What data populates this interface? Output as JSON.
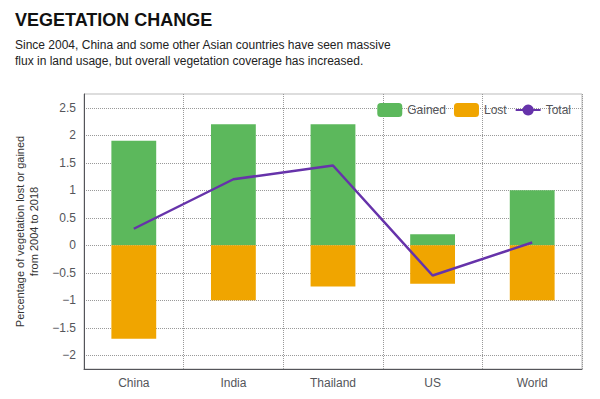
{
  "chart_data": {
    "type": "bar",
    "title": "VEGETATION CHANGE",
    "subtitle": "Since 2004, China and some other Asian countries have seen massive\nflux in land usage, but overall vegetation coverage has increased.",
    "ylabel": "Percentage of vegetation lost or gained\nfrom 2004 to 2018",
    "categories": [
      "China",
      "India",
      "Thailand",
      "US",
      "World"
    ],
    "series": [
      {
        "name": "Gained",
        "type": "bar",
        "color": "#5cb85c",
        "values": [
          1.9,
          2.2,
          2.2,
          0.2,
          1.0
        ]
      },
      {
        "name": "Lost",
        "type": "bar",
        "color": "#f0a500",
        "values": [
          -1.7,
          -1.0,
          -0.75,
          -0.7,
          -1.0
        ]
      },
      {
        "name": "Total",
        "type": "line",
        "marker": "none",
        "color": "#6633aa",
        "values": [
          0.3,
          1.2,
          1.45,
          -0.55,
          0.05
        ]
      }
    ],
    "ylim": [
      -2.25,
      2.75
    ],
    "yticks": [
      {
        "value": -2,
        "label": "−2"
      },
      {
        "value": -1.5,
        "label": "−1.5"
      },
      {
        "value": -1,
        "label": "−1"
      },
      {
        "value": -0.5,
        "label": "−0.5"
      },
      0,
      0.5,
      1,
      1.5,
      2,
      2.5
    ],
    "grid": true,
    "legend": "upper right"
  }
}
